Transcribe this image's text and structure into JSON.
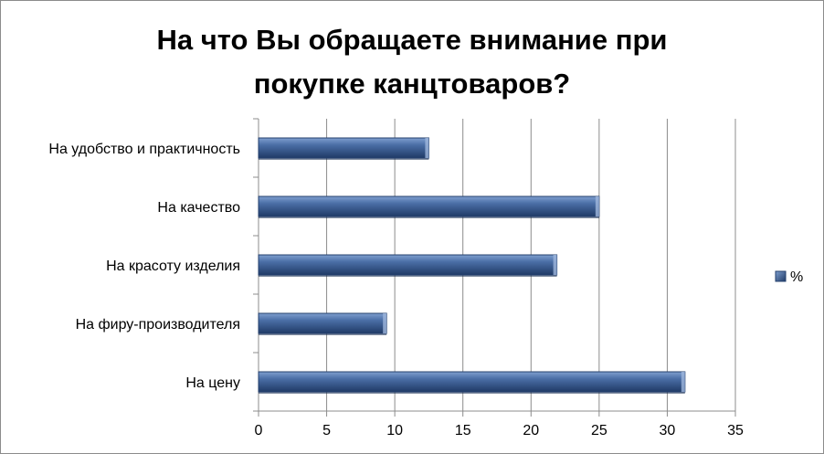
{
  "chart_data": {
    "type": "bar",
    "orientation": "horizontal",
    "title": "На что Вы обращаете внимание при\nпокупке канцтоваров?",
    "categories": [
      "На удобство и практичность",
      "На качество",
      "На красоту изделия",
      "На фиру-производителя",
      "На цену"
    ],
    "series": [
      {
        "name": "%",
        "values": [
          12.5,
          25,
          21.9,
          9.4,
          31.3
        ]
      }
    ],
    "xlim": [
      0,
      35
    ],
    "xticks": [
      0,
      5,
      10,
      15,
      20,
      25,
      30,
      35
    ],
    "grid": true,
    "legend_position": "right",
    "bar_color": "#3e5f94"
  }
}
